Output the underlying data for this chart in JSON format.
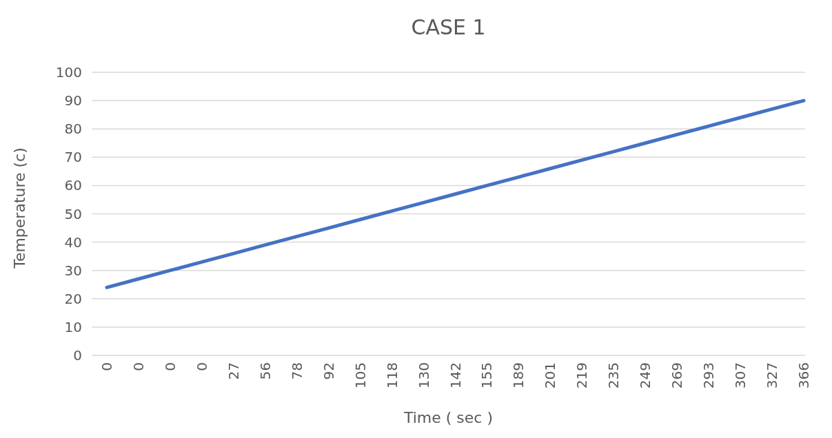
{
  "chart_data": {
    "type": "line",
    "title": "CASE 1",
    "xlabel": "Time ( sec )",
    "ylabel": "Temperature (c)",
    "categories": [
      "0",
      "0",
      "0",
      "0",
      "27",
      "56",
      "78",
      "92",
      "105",
      "118",
      "130",
      "142",
      "155",
      "189",
      "201",
      "219",
      "235",
      "249",
      "269",
      "293",
      "307",
      "327",
      "366"
    ],
    "series": [
      {
        "color": "#4472c4",
        "values": [
          24,
          27,
          30,
          33,
          36,
          39,
          42,
          45,
          48,
          51,
          54,
          57,
          60,
          63,
          66,
          69,
          72,
          75,
          78,
          81,
          84,
          87,
          90
        ]
      }
    ],
    "ylim": [
      0,
      100
    ],
    "yticks": [
      0,
      10,
      20,
      30,
      40,
      50,
      60,
      70,
      80,
      90,
      100
    ],
    "grid": "y",
    "marker": "none",
    "line_style": "solid"
  }
}
